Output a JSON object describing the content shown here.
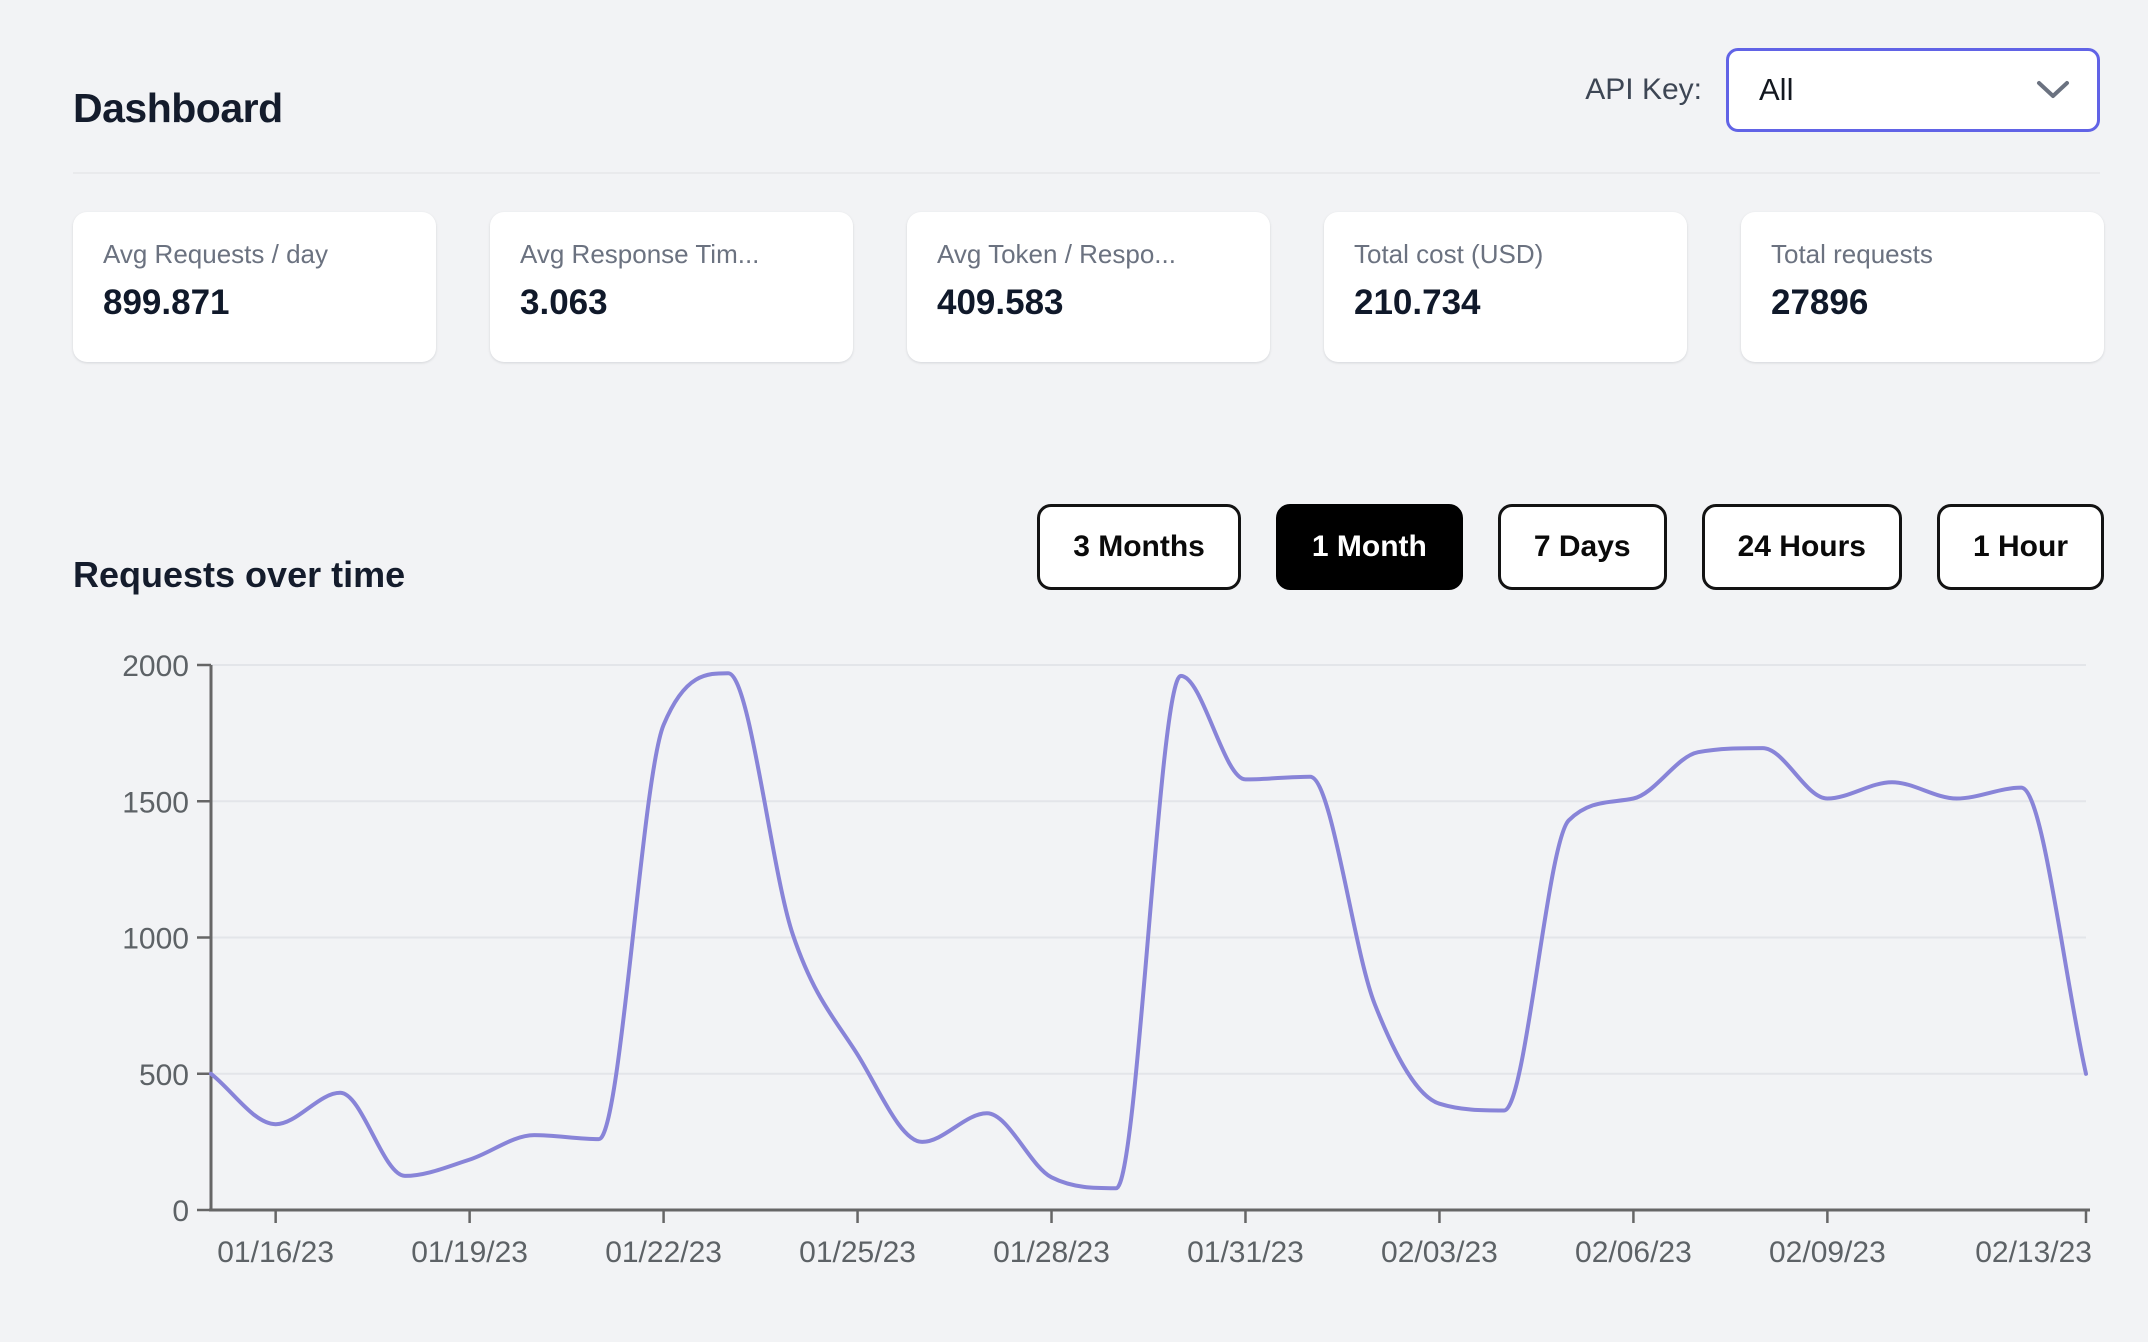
{
  "header": {
    "title": "Dashboard",
    "api_key_label": "API Key:",
    "api_key_value": "All"
  },
  "stats": [
    {
      "label": "Avg Requests / day",
      "value": "899.871"
    },
    {
      "label": "Avg Response Tim...",
      "value": "3.063"
    },
    {
      "label": "Avg Token / Respo...",
      "value": "409.583"
    },
    {
      "label": "Total cost (USD)",
      "value": "210.734"
    },
    {
      "label": "Total requests",
      "value": "27896"
    }
  ],
  "chart_section": {
    "title": "Requests over time",
    "range_buttons": [
      "3 Months",
      "1 Month",
      "7 Days",
      "24 Hours",
      "1 Hour"
    ],
    "active_range": "1 Month"
  },
  "chart_data": {
    "type": "line",
    "title": "Requests over time",
    "x": [
      "01/15/23",
      "01/16/23",
      "01/17/23",
      "01/18/23",
      "01/19/23",
      "01/20/23",
      "01/21/23",
      "01/22/23",
      "01/23/23",
      "01/24/23",
      "01/25/23",
      "01/26/23",
      "01/27/23",
      "01/28/23",
      "01/29/23",
      "01/30/23",
      "01/31/23",
      "02/01/23",
      "02/02/23",
      "02/03/23",
      "02/04/23",
      "02/05/23",
      "02/06/23",
      "02/07/23",
      "02/08/23",
      "02/09/23",
      "02/10/23",
      "02/11/23",
      "02/12/23",
      "02/13/23"
    ],
    "series": [
      {
        "name": "Requests",
        "values": [
          500,
          315,
          430,
          125,
          185,
          275,
          260,
          1780,
          1970,
          1010,
          570,
          250,
          355,
          120,
          80,
          1960,
          1580,
          1590,
          755,
          390,
          365,
          1430,
          1510,
          1680,
          1695,
          1510,
          1570,
          1510,
          1550,
          500
        ]
      }
    ],
    "x_tick_labels": [
      "01/16/23",
      "01/19/23",
      "01/22/23",
      "01/25/23",
      "01/28/23",
      "01/31/23",
      "02/03/23",
      "02/06/23",
      "02/09/23",
      "02/13/23"
    ],
    "x_tick_indices": [
      1,
      4,
      7,
      10,
      13,
      16,
      19,
      22,
      25,
      29
    ],
    "y_ticks": [
      0,
      500,
      1000,
      1500,
      2000
    ],
    "ylim": [
      0,
      2000
    ],
    "line_color": "#8884d8",
    "grid": "horizontal",
    "legend": "none"
  },
  "colors": {
    "page_bg": "#f2f3f5",
    "card_bg": "#ffffff",
    "heading": "#141c2c",
    "label_gray": "#6b7280",
    "select_border": "#6163e6",
    "active_button_bg": "#000000",
    "line": "#8884d8",
    "axis": "#666666",
    "tick_text": "#5d6266",
    "grid": "#e3e5e9"
  }
}
